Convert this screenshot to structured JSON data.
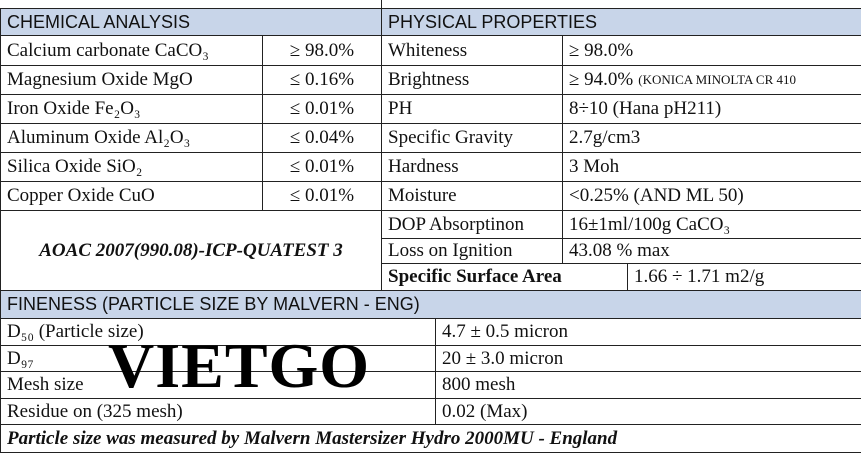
{
  "chemical_analysis": {
    "title": "CHEMICAL ANALYSIS",
    "rows": [
      [
        "Calcium carbonate  CaCO₃",
        "≥ 98.0%"
      ],
      [
        "Magnesium Oxide MgO",
        "≤ 0.16%"
      ],
      [
        "Iron Oxide Fe₂O₃",
        "≤ 0.01%"
      ],
      [
        "Aluminum Oxide Al₂O₃",
        "≤ 0.04%"
      ],
      [
        "Silica Oxide SiO₂",
        "≤ 0.01%"
      ],
      [
        "Copper Oxide CuO",
        "≤ 0.01%"
      ]
    ],
    "method": "AOAC 2007(990.08)-ICP-QUATEST 3"
  },
  "physical_properties": {
    "title": "PHYSICAL PROPERTIES",
    "rows": [
      [
        "Whiteness",
        "≥ 98.0%"
      ],
      [
        "Brightness",
        "≥ 94.0%"
      ],
      [
        "PH",
        "8÷10  (Hana pH211)"
      ],
      [
        "Specific Gravity",
        "2.7g/cm3"
      ],
      [
        "Hardness",
        "3 Moh"
      ],
      [
        "Moisture",
        "<0.25% (AND ML 50)"
      ],
      [
        "DOP Absorptinon",
        "16±1ml/100g CaCO₃"
      ],
      [
        "Loss on Ignition",
        "43.08 % max"
      ]
    ],
    "brightness_note": "(KONICA MINOLTA CR 410",
    "surface_area": {
      "label": "Specific Surface Area",
      "value": "1.66 ÷ 1.71 m2/g"
    }
  },
  "fineness": {
    "title": "FINENESS (PARTICLE SIZE BY MALVERN - ENG)",
    "rows": [
      [
        "D₅₀ (Particle size)",
        "4.7 ± 0.5 micron"
      ],
      [
        "D₉₇",
        "20 ± 3.0 micron"
      ],
      [
        "Mesh size",
        "800 mesh"
      ],
      [
        "Residue on (325 mesh)",
        "0.02 (Max)"
      ]
    ],
    "footer": "Particle size was measured by Malvern Mastersizer Hydro 2000MU - England"
  },
  "watermark": "VIETGO"
}
